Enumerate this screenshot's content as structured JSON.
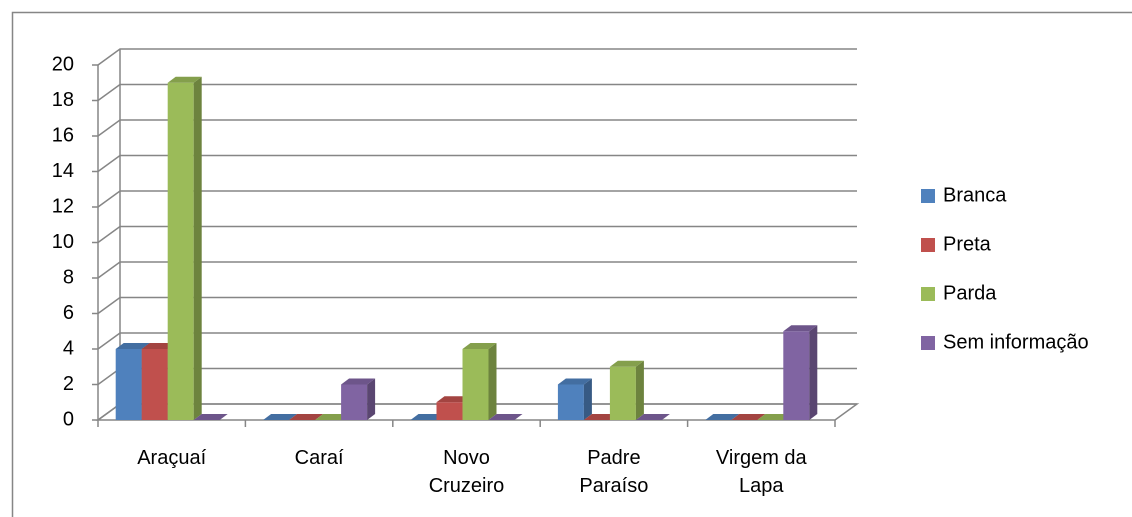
{
  "chart_data": {
    "type": "bar3d",
    "categories": [
      "Araçuaí",
      "Caraí",
      "Novo Cruzeiro",
      "Padre Paraíso",
      "Virgem da Lapa"
    ],
    "series": [
      {
        "name": "Branca",
        "color": "#4f81bd",
        "values": [
          4,
          0,
          0,
          2,
          0
        ]
      },
      {
        "name": "Preta",
        "color": "#c0504d",
        "values": [
          4,
          0,
          1,
          0,
          0
        ]
      },
      {
        "name": "Parda",
        "color": "#9bbb59",
        "values": [
          19,
          0,
          4,
          3,
          0
        ]
      },
      {
        "name": "Sem informação",
        "color": "#8064a2",
        "values": [
          0,
          2,
          0,
          0,
          5
        ]
      }
    ],
    "ylim": [
      0,
      20
    ],
    "yticks": [
      0,
      2,
      4,
      6,
      8,
      10,
      12,
      14,
      16,
      18,
      20
    ],
    "grid": true,
    "legend": "right"
  }
}
